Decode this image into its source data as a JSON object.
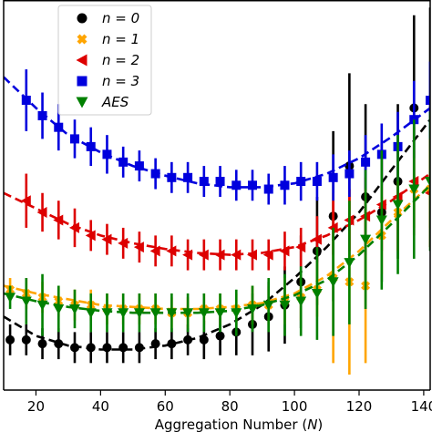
{
  "chart_data": {
    "type": "scatter",
    "title": "",
    "xlabel": "Aggregation Number (N)",
    "ylabel": "",
    "xlim": [
      10,
      142
    ],
    "ylim": [
      0,
      100
    ],
    "x_ticks": [
      20,
      40,
      60,
      80,
      100,
      120,
      140
    ],
    "x_tick_labels": [
      "20",
      "40",
      "60",
      "80",
      "100",
      "120",
      "140"
    ],
    "y_ticks_shown": false,
    "grid": false,
    "legend_position": "top-left",
    "series": [
      {
        "name": "n = 0",
        "color": "#000000",
        "marker": "circle",
        "x": [
          12,
          17,
          22,
          27,
          32,
          37,
          42,
          47,
          52,
          57,
          62,
          67,
          72,
          77,
          82,
          87,
          92,
          97,
          102,
          107,
          112,
          117,
          122,
          127,
          132,
          137,
          142
        ],
        "y": [
          13,
          13,
          12,
          12,
          11,
          11,
          11,
          11,
          11,
          12,
          12,
          13,
          13,
          14,
          15,
          17,
          19,
          22,
          28,
          36,
          45,
          58,
          50,
          46,
          54,
          73,
          75
        ],
        "err": [
          4,
          4,
          4,
          4,
          4,
          4,
          4,
          4,
          4,
          4,
          4,
          4,
          5,
          5,
          6,
          8,
          9,
          10,
          12,
          14,
          22,
          24,
          24,
          18,
          20,
          24,
          24
        ],
        "fit_x": [
          10,
          20,
          30,
          40,
          50,
          60,
          70,
          80,
          90,
          100,
          110,
          120,
          130,
          142
        ],
        "fit_y": [
          19,
          14,
          11.5,
          10.5,
          10.5,
          11.5,
          13.5,
          17,
          22,
          29,
          37,
          46,
          57,
          70
        ]
      },
      {
        "name": "n = 1",
        "color": "#FFA500",
        "marker": "x",
        "x": [
          12,
          17,
          22,
          27,
          32,
          37,
          42,
          47,
          52,
          57,
          62,
          67,
          72,
          77,
          82,
          87,
          92,
          97,
          102,
          107,
          112,
          117,
          122,
          127,
          132,
          137,
          142
        ],
        "y": [
          26,
          25,
          24,
          23,
          22,
          22,
          21,
          21,
          21,
          21,
          20,
          20,
          21,
          21,
          21,
          22,
          22,
          23,
          24,
          26,
          29,
          28,
          27,
          40,
          46,
          52,
          52
        ],
        "err": [
          3,
          4,
          4,
          4,
          4,
          4,
          4,
          4,
          4,
          4,
          4,
          4,
          4,
          4,
          4,
          5,
          5,
          6,
          6,
          7,
          22,
          24,
          20,
          10,
          10,
          10,
          10
        ],
        "fit_x": [
          10,
          20,
          30,
          40,
          50,
          60,
          70,
          80,
          90,
          100,
          110,
          120,
          130,
          142
        ],
        "fit_y": [
          27,
          25,
          23.5,
          22,
          21.5,
          21,
          21,
          21.5,
          22.5,
          25,
          29.5,
          36,
          44,
          53
        ]
      },
      {
        "name": "n = 2",
        "color": "#DD0000",
        "marker": "triangle-left",
        "x": [
          17,
          22,
          27,
          32,
          37,
          42,
          47,
          52,
          57,
          62,
          67,
          72,
          77,
          82,
          87,
          92,
          97,
          102,
          107,
          112,
          117,
          122,
          127,
          132,
          137,
          142
        ],
        "y": [
          49,
          46,
          44,
          42,
          40,
          39,
          38,
          37,
          36,
          36,
          35,
          35,
          35,
          35,
          35,
          35,
          36,
          37,
          39,
          42,
          44,
          45,
          48,
          50,
          54,
          51
        ],
        "err": [
          7,
          5,
          5,
          5,
          4,
          4,
          4,
          4,
          4,
          4,
          4,
          4,
          4,
          4,
          4,
          4,
          5,
          5,
          6,
          7,
          8,
          10,
          12,
          14,
          14,
          14
        ],
        "fit_x": [
          10,
          20,
          30,
          40,
          50,
          60,
          70,
          80,
          90,
          100,
          110,
          120,
          130,
          142
        ],
        "fit_y": [
          51,
          47,
          43,
          40,
          38,
          36.5,
          35.5,
          35,
          35.5,
          37,
          40,
          44,
          49,
          56
        ]
      },
      {
        "name": "n = 3",
        "color": "#0000DD",
        "marker": "square",
        "x": [
          17,
          22,
          27,
          32,
          37,
          42,
          47,
          52,
          57,
          62,
          67,
          72,
          77,
          82,
          87,
          92,
          97,
          102,
          107,
          112,
          117,
          122,
          127,
          132,
          137,
          142
        ],
        "y": [
          75,
          71,
          68,
          65,
          63,
          61,
          59,
          58,
          56,
          55,
          55,
          54,
          54,
          53,
          53,
          52,
          53,
          54,
          54,
          55,
          56,
          59,
          61,
          63,
          70,
          75
        ],
        "err": [
          8,
          6,
          6,
          5,
          5,
          5,
          4,
          4,
          4,
          4,
          4,
          4,
          4,
          4,
          4,
          4,
          5,
          5,
          5,
          6,
          6,
          7,
          8,
          9,
          10,
          10
        ],
        "fit_x": [
          10,
          20,
          30,
          40,
          50,
          60,
          70,
          80,
          90,
          100,
          110,
          120,
          130,
          142
        ],
        "fit_y": [
          81,
          73,
          66,
          61.5,
          58,
          55.5,
          53.5,
          52.5,
          52.5,
          53.5,
          56,
          60,
          65.5,
          73
        ]
      },
      {
        "name": "AES",
        "color": "#008000",
        "marker": "triangle-down",
        "x": [
          12,
          17,
          22,
          27,
          32,
          37,
          42,
          47,
          52,
          57,
          62,
          67,
          72,
          77,
          82,
          87,
          92,
          97,
          102,
          107,
          112,
          117,
          122,
          127,
          132,
          137,
          142
        ],
        "y": [
          24,
          23,
          22,
          21,
          21,
          20,
          20,
          20,
          20,
          20,
          20,
          20,
          20,
          20,
          20,
          21,
          22,
          22,
          23,
          25,
          28,
          33,
          39,
          44,
          48,
          52,
          54
        ],
        "err": [
          3,
          6,
          8,
          6,
          5,
          5,
          5,
          5,
          5,
          5,
          5,
          5,
          5,
          5,
          6,
          6,
          7,
          8,
          9,
          12,
          14,
          16,
          18,
          18,
          18,
          18,
          18
        ],
        "fit_x": [
          10,
          20,
          30,
          40,
          50,
          60,
          70,
          80,
          90,
          100,
          110,
          120,
          130,
          142
        ],
        "fit_y": [
          25,
          23,
          21.5,
          20.5,
          20,
          20,
          20,
          20.5,
          22,
          24.5,
          28.5,
          35,
          43,
          53
        ]
      }
    ]
  },
  "legend": [
    {
      "name": "n = 0",
      "color": "#000000",
      "marker": "circle"
    },
    {
      "name": "n = 1",
      "color": "#FFA500",
      "marker": "x"
    },
    {
      "name": "n = 2",
      "color": "#DD0000",
      "marker": "triangle-left"
    },
    {
      "name": "n = 3",
      "color": "#0000DD",
      "marker": "square"
    },
    {
      "name": "AES",
      "color": "#008000",
      "marker": "triangle-down"
    }
  ]
}
